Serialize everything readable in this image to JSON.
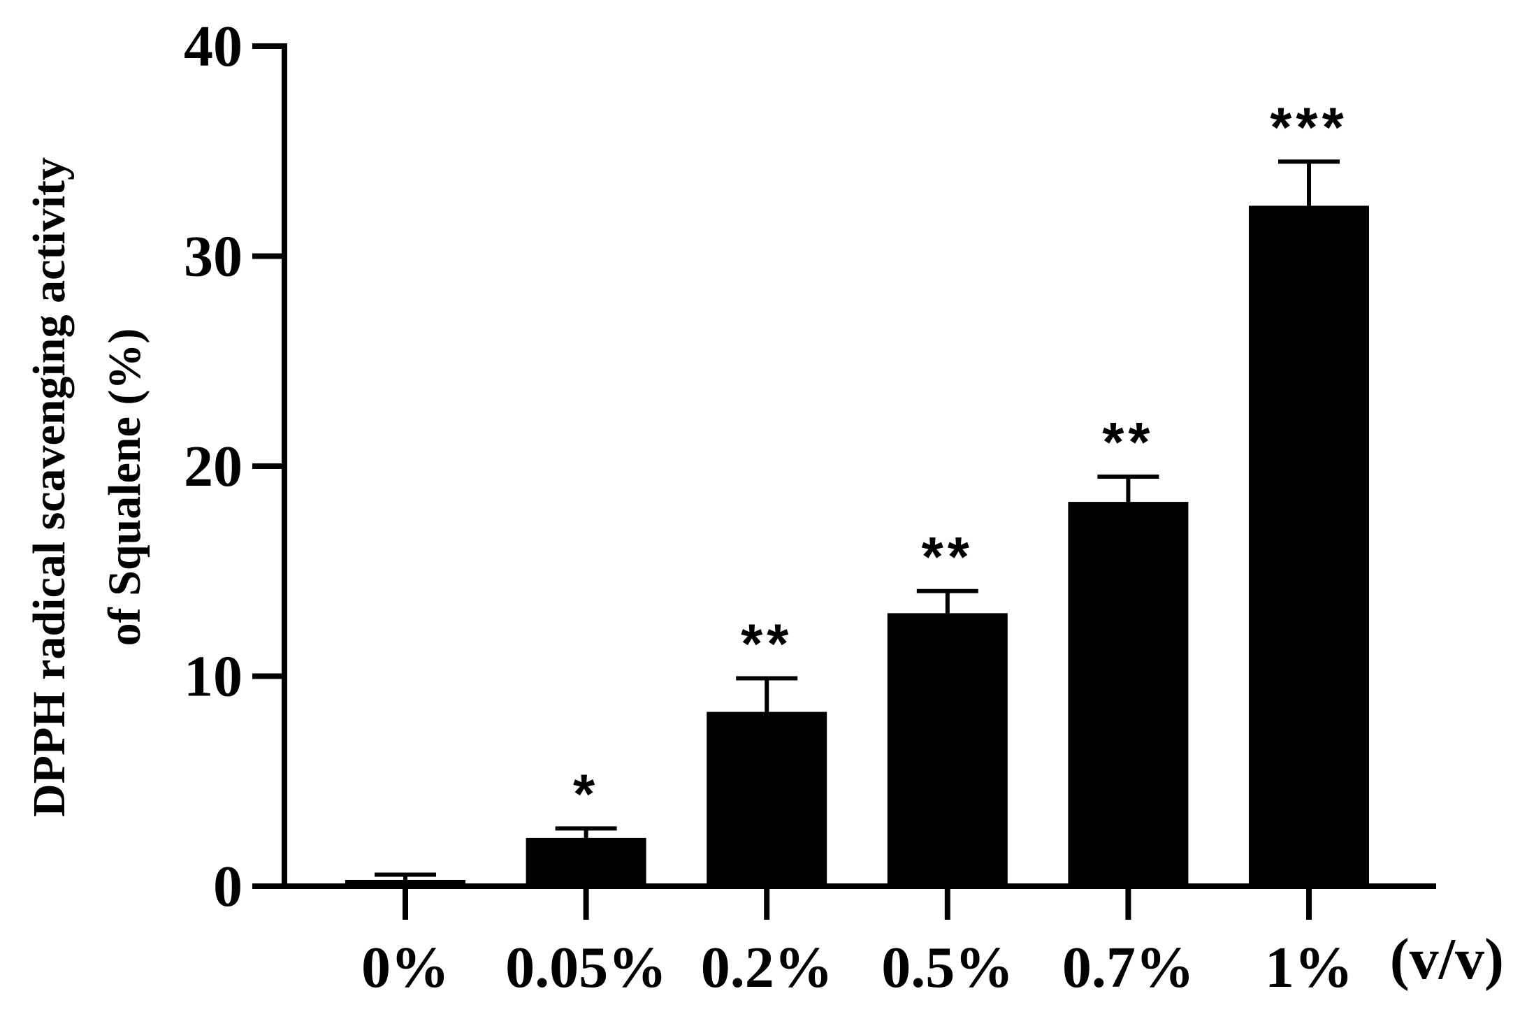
{
  "chart_data": {
    "type": "bar",
    "title": "",
    "ylabel": [
      "DPPH radical scavenging activity",
      "of Squalene (%)"
    ],
    "xlabel": "(v/v)",
    "categories": [
      "0%",
      "0.05%",
      "0.2%",
      "0.5%",
      "0.7%",
      "1%"
    ],
    "values": [
      0.3,
      2.3,
      8.3,
      13.0,
      18.3,
      32.4
    ],
    "errors": [
      0.25,
      0.45,
      1.6,
      1.05,
      1.2,
      2.1
    ],
    "significance": [
      "",
      "*",
      "**",
      "**",
      "**",
      "***"
    ],
    "ylim": [
      0,
      40
    ],
    "yticks": [
      0,
      10,
      20,
      30,
      40
    ],
    "bar_color": "#000000",
    "grid": false,
    "legend": "none"
  }
}
